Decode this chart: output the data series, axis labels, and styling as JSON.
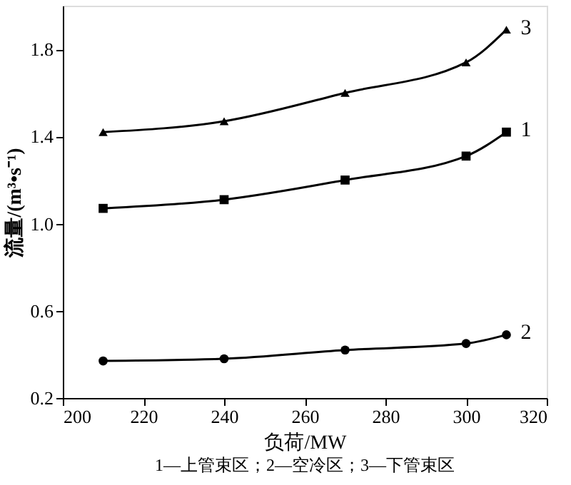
{
  "chart_data": {
    "type": "line",
    "xlabel": "负荷/MW",
    "ylabel": "流量/(m³•s⁻¹)",
    "x": [
      210,
      240,
      270,
      300,
      310
    ],
    "series": [
      {
        "name": "3",
        "color": "#000000",
        "marker": "triangle",
        "values": [
          1.42,
          1.47,
          1.6,
          1.74,
          1.89
        ]
      },
      {
        "name": "1",
        "color": "#000000",
        "marker": "square",
        "values": [
          1.07,
          1.11,
          1.2,
          1.31,
          1.42
        ]
      },
      {
        "name": "2",
        "color": "#000000",
        "marker": "circle",
        "values": [
          0.37,
          0.38,
          0.42,
          0.45,
          0.49
        ]
      }
    ],
    "xlim": [
      200,
      320
    ],
    "xticks": [
      200,
      220,
      240,
      260,
      280,
      300,
      320
    ],
    "ylim": [
      0.2,
      2.0
    ],
    "yticks": [
      0.2,
      0.6,
      {
        "value": 1,
        "label": "1.0"
      },
      1.4,
      1.8
    ],
    "grid": false,
    "legend": false,
    "line_style": "solid",
    "annotations": [
      "1—上管束区；2—空冷区；3—下管束区"
    ]
  }
}
